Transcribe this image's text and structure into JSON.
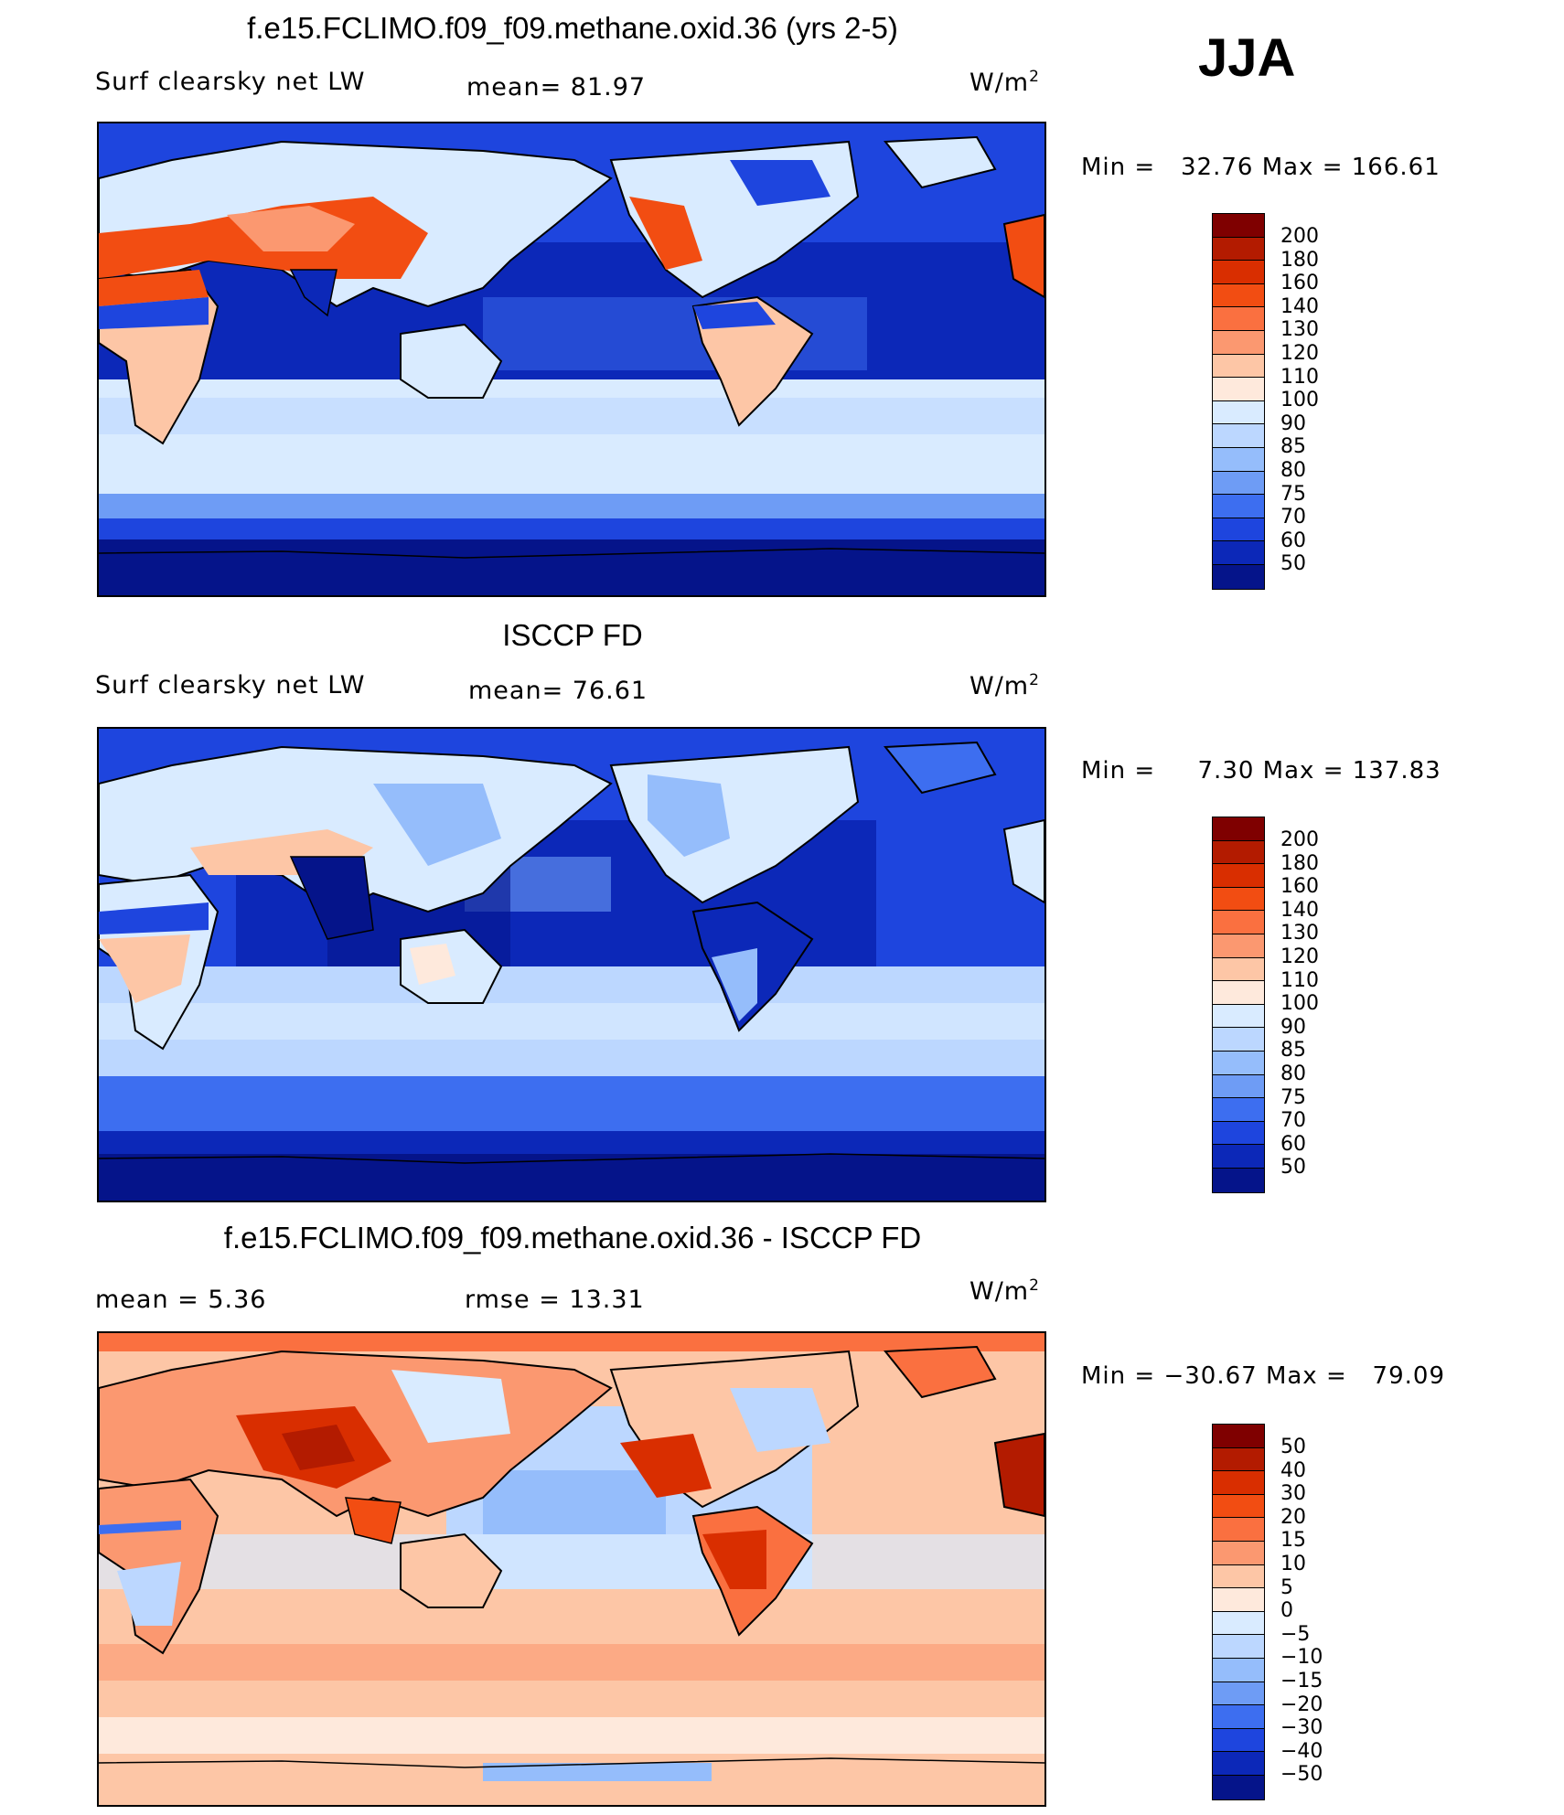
{
  "season": "JJA",
  "panels": [
    {
      "id": "model",
      "title": "f.e15.FCLIMO.f09_f09.methane.oxid.36 (yrs 2-5)",
      "left_label": "Surf clearsky net LW",
      "mid_label": "mean=  81.97",
      "units": "W/m",
      "units_sup": "2",
      "min_label": "Min =",
      "min_value": "32.76",
      "max_label": "Max =",
      "max_value": "166.61",
      "colorbar": {
        "labels": [
          "200",
          "180",
          "160",
          "140",
          "130",
          "120",
          "110",
          "100",
          "90",
          "85",
          "80",
          "75",
          "70",
          "60",
          "50"
        ],
        "colors": [
          "#7f0000",
          "#b31b00",
          "#d92e00",
          "#f24d12",
          "#fa7040",
          "#fb9870",
          "#fdc6a6",
          "#fee9dc",
          "#d9ebff",
          "#bcd7ff",
          "#95bdfb",
          "#6e9cf5",
          "#3d6ef0",
          "#1e45de",
          "#0c28b8",
          "#05148a"
        ]
      }
    },
    {
      "id": "obs",
      "title": "ISCCP FD",
      "left_label": "Surf clearsky net LW",
      "mid_label": "mean=  76.61",
      "units": "W/m",
      "units_sup": "2",
      "min_label": "Min =",
      "min_value": "7.30",
      "max_label": "Max =",
      "max_value": "137.83",
      "colorbar": {
        "labels": [
          "200",
          "180",
          "160",
          "140",
          "130",
          "120",
          "110",
          "100",
          "90",
          "85",
          "80",
          "75",
          "70",
          "60",
          "50"
        ],
        "colors": [
          "#7f0000",
          "#b31b00",
          "#d92e00",
          "#f24d12",
          "#fa7040",
          "#fb9870",
          "#fdc6a6",
          "#fee9dc",
          "#d9ebff",
          "#bcd7ff",
          "#95bdfb",
          "#6e9cf5",
          "#3d6ef0",
          "#1e45de",
          "#0c28b8",
          "#05148a"
        ]
      }
    },
    {
      "id": "diff",
      "title": "f.e15.FCLIMO.f09_f09.methane.oxid.36 - ISCCP FD",
      "left_label": "mean =    5.36",
      "mid_label": "rmse =   13.31",
      "units": "W/m",
      "units_sup": "2",
      "min_label": "Min =",
      "min_value": "−30.67",
      "max_label": "Max =",
      "max_value": "79.09",
      "colorbar": {
        "labels": [
          "50",
          "40",
          "30",
          "20",
          "15",
          "10",
          "5",
          "0",
          "−5",
          "−10",
          "−15",
          "−20",
          "−30",
          "−40",
          "−50"
        ],
        "colors": [
          "#7f0000",
          "#b31b00",
          "#d92e00",
          "#f24d12",
          "#fa7040",
          "#fb9870",
          "#fdc6a6",
          "#fee9dc",
          "#d9ebff",
          "#bcd7ff",
          "#95bdfb",
          "#6e9cf5",
          "#3d6ef0",
          "#1e45de",
          "#0c28b8",
          "#05148a"
        ]
      }
    }
  ],
  "palette": {
    "deep_blue": "#05148a",
    "blue": "#1e45de",
    "mid_blue": "#3d6ef0",
    "light_blue": "#95bdfb",
    "pale_blue": "#d9ebff",
    "cream": "#fee9dc",
    "peach": "#fdc6a6",
    "salmon": "#fb9870",
    "orange": "#f24d12",
    "red": "#d92e00",
    "dark_red": "#7f0000"
  }
}
